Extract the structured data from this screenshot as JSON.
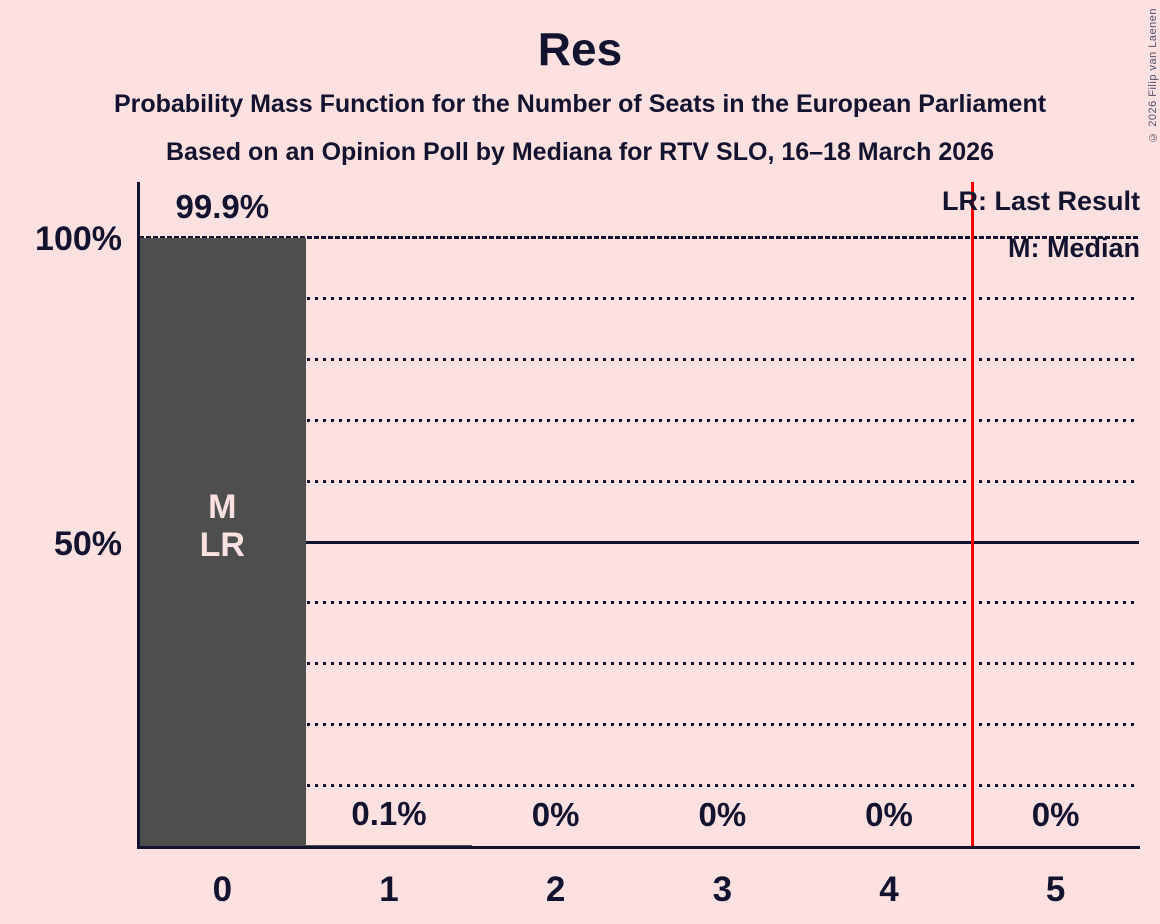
{
  "title": "Res",
  "subtitles": [
    "Probability Mass Function for the Number of Seats in the European Parliament",
    "Based on an Opinion Poll by Mediana for RTV SLO, 16–18 March 2026"
  ],
  "copyright": "© 2026 Filip van Laenen",
  "legend": {
    "last_result": "LR: Last Result",
    "median": "M: Median"
  },
  "colors": {
    "background": "#fce1e0",
    "text": "#131330",
    "bar": "#4e4e4e",
    "bar_label": "#fce1e0",
    "last_result": "#f00000",
    "copyright": "#50506a"
  },
  "chart_data": {
    "type": "bar",
    "categories": [
      "0",
      "1",
      "2",
      "3",
      "4",
      "5"
    ],
    "values": [
      99.9,
      0.1,
      0,
      0,
      0,
      0
    ],
    "value_labels": [
      "99.9%",
      "0.1%",
      "0%",
      "0%",
      "0%",
      "0%"
    ],
    "bar_annotation": {
      "bar_index": 0,
      "lines": [
        "M",
        "LR"
      ]
    },
    "y_axis_ticks": [
      {
        "percent": 100,
        "label": "100%"
      },
      {
        "percent": 50,
        "label": "50%"
      }
    ],
    "gridlines": [
      {
        "percent": 10,
        "style": "dotted"
      },
      {
        "percent": 20,
        "style": "dotted"
      },
      {
        "percent": 30,
        "style": "dotted"
      },
      {
        "percent": 40,
        "style": "dotted"
      },
      {
        "percent": 50,
        "style": "solid"
      },
      {
        "percent": 60,
        "style": "dotted"
      },
      {
        "percent": 70,
        "style": "dotted"
      },
      {
        "percent": 80,
        "style": "dotted"
      },
      {
        "percent": 90,
        "style": "dotted"
      },
      {
        "percent": 100,
        "style": "dashed"
      }
    ],
    "ylim": [
      0,
      100
    ],
    "last_result_line_at": 4.5
  }
}
